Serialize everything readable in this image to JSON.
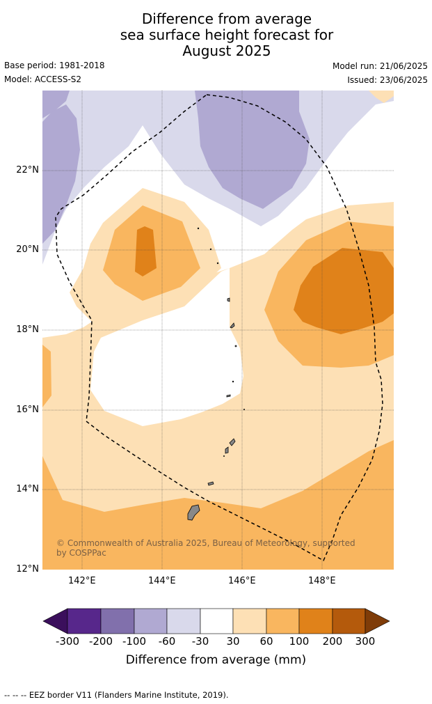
{
  "title": {
    "line1": "Difference from average",
    "line2": "sea surface height forecast for",
    "line3": "August 2025"
  },
  "meta": {
    "base_period": "Base period: 1981-2018",
    "model": "Model: ACCESS-S2",
    "model_run": "Model run: 21/06/2025",
    "issued": "Issued: 23/06/2025"
  },
  "map": {
    "lat_labels": [
      "22°N",
      "20°N",
      "18°N",
      "16°N",
      "14°N",
      "12°N"
    ],
    "lon_labels": [
      "142°E",
      "144°E",
      "146°E",
      "148°E"
    ],
    "copyright": "© Commonwealth of Australia 2025, Bureau of Meteorology, supported",
    "copyright2": "by COSPPac"
  },
  "colorbar": {
    "title": "Difference from average (mm)",
    "tick_labels": [
      "-300",
      "-200",
      "-100",
      "-60",
      "-30",
      "30",
      "60",
      "100",
      "200",
      "300"
    ],
    "colors": [
      "#3b0f5c",
      "#57278b",
      "#8170ac",
      "#b0a9d2",
      "#d9d9eb",
      "#ffffff",
      "#fde0b5",
      "#f9b65f",
      "#e0821a",
      "#b45a0c",
      "#7f3c08"
    ]
  },
  "footer": "--  --  -- EEZ border V11 (Flanders Marine Institute, 2019)."
}
